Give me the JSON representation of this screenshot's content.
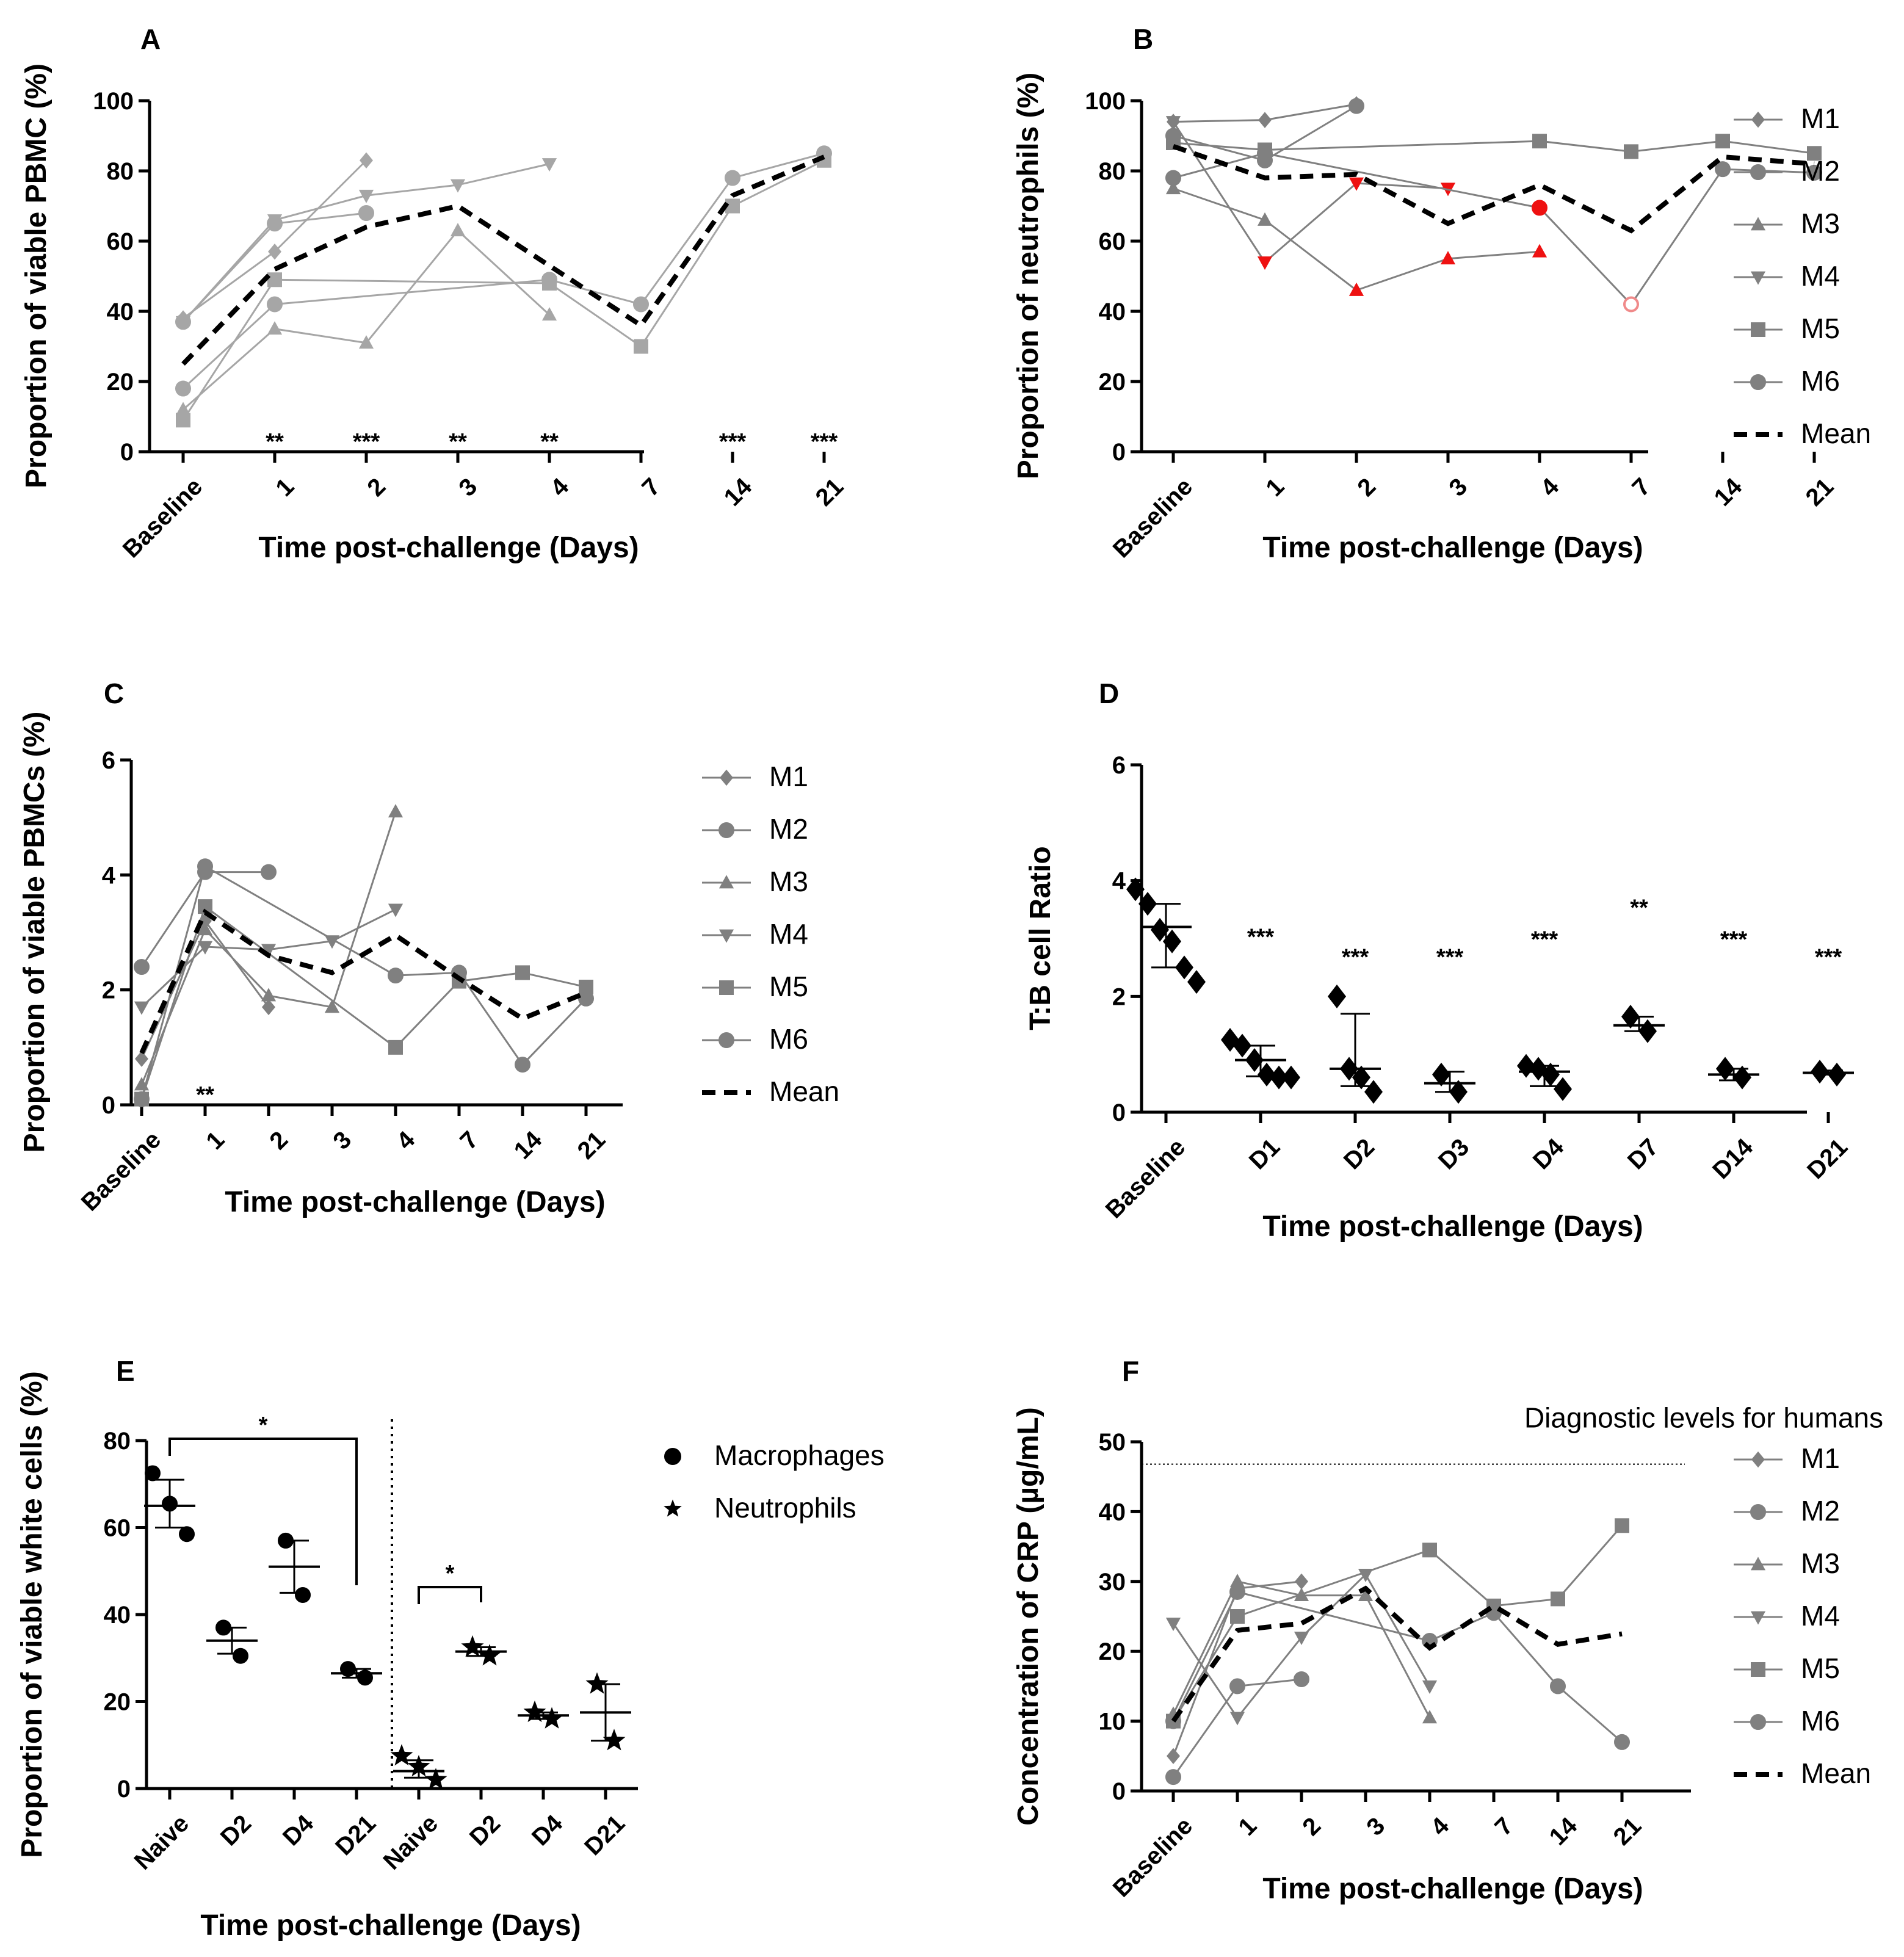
{
  "colors": {
    "series": "#808080",
    "light": "#a6a6a6",
    "mean": "#000000",
    "red": "#ee1111",
    "axis": "#000000"
  },
  "chart_data": [
    {
      "panel": "A",
      "type": "line",
      "ylabel": "Proportion of viable PBMC (%)",
      "xlabel": "Time post-challenge (Days)",
      "categories": [
        "Baseline",
        "1",
        "2",
        "3",
        "4",
        "7",
        "14",
        "21"
      ],
      "ylim": [
        0,
        100
      ],
      "yticks": [
        "0",
        "20",
        "40",
        "60",
        "80",
        "100"
      ],
      "significance": [
        "",
        "**",
        "***",
        "**",
        "**",
        "",
        "***",
        "***"
      ],
      "series": [
        {
          "name": "M1",
          "marker": "diamond",
          "values": [
            38,
            57,
            83,
            null,
            null,
            null,
            null,
            null
          ]
        },
        {
          "name": "M2",
          "marker": "circle",
          "values": [
            37,
            65,
            68,
            null,
            null,
            null,
            null,
            null
          ]
        },
        {
          "name": "M3",
          "marker": "triangle-up",
          "values": [
            12,
            35,
            31,
            63,
            39,
            null,
            null,
            null
          ]
        },
        {
          "name": "M4",
          "marker": "triangle-down",
          "values": [
            37,
            66,
            73,
            76,
            82,
            null,
            null,
            null
          ]
        },
        {
          "name": "M5",
          "marker": "square",
          "values": [
            9,
            49,
            null,
            null,
            48,
            30,
            70,
            83
          ]
        },
        {
          "name": "M6",
          "marker": "circle",
          "values": [
            18,
            42,
            null,
            null,
            49,
            42,
            78,
            85
          ]
        },
        {
          "name": "Mean",
          "marker": "none",
          "values": [
            25,
            52,
            64,
            70,
            53,
            36,
            73,
            84
          ]
        }
      ]
    },
    {
      "panel": "B",
      "type": "line",
      "ylabel": "Proportion of neutrophils (%)",
      "xlabel": "Time post-challenge (Days)",
      "categories": [
        "Baseline",
        "1",
        "2",
        "3",
        "4",
        "7",
        "14",
        "21"
      ],
      "ylim": [
        0,
        100
      ],
      "yticks": [
        "0",
        "20",
        "40",
        "60",
        "80",
        "100"
      ],
      "legend": [
        "M1",
        "M2",
        "M3",
        "M4",
        "M5",
        "M6",
        "Mean"
      ],
      "series": [
        {
          "name": "M1",
          "marker": "diamond",
          "values": [
            94,
            94.5,
            99,
            null,
            null,
            null,
            null,
            null
          ]
        },
        {
          "name": "M2",
          "marker": "circle",
          "values": [
            90,
            83,
            98.5,
            null,
            null,
            null,
            null,
            null
          ]
        },
        {
          "name": "M3",
          "marker": "triangle-up",
          "values": [
            75,
            66,
            46,
            55,
            57,
            null,
            null,
            null
          ],
          "red_from": 2
        },
        {
          "name": "M4",
          "marker": "triangle-down",
          "values": [
            94,
            54,
            76.5,
            75,
            null,
            null,
            null,
            null
          ],
          "red_from": 1
        },
        {
          "name": "M5",
          "marker": "square",
          "values": [
            88,
            86,
            null,
            null,
            88.5,
            85.5,
            88.5,
            85
          ]
        },
        {
          "name": "M6",
          "marker": "circle",
          "values": [
            78,
            85,
            null,
            null,
            69.5,
            42,
            80.5,
            79.5
          ],
          "red_points": [
            4
          ],
          "open_points": [
            5
          ]
        },
        {
          "name": "Mean",
          "marker": "none",
          "values": [
            87,
            78,
            79,
            65,
            76,
            63,
            84,
            82
          ]
        }
      ]
    },
    {
      "panel": "C",
      "type": "line",
      "ylabel": "Proportion of viable PBMCs (%)",
      "xlabel": "Time post-challenge (Days)",
      "categories": [
        "Baseline",
        "1",
        "2",
        "3",
        "4",
        "7",
        "14",
        "21"
      ],
      "ylim": [
        0,
        6
      ],
      "yticks": [
        "0",
        "2",
        "4",
        "6"
      ],
      "significance": [
        "",
        "**",
        "",
        "",
        "",
        "",
        "",
        ""
      ],
      "legend": [
        "M1",
        "M2",
        "M3",
        "M4",
        "M5",
        "M6",
        "Mean"
      ],
      "series": [
        {
          "name": "M1",
          "marker": "diamond",
          "values": [
            0.8,
            3.2,
            1.7,
            null,
            null,
            null,
            null,
            null
          ]
        },
        {
          "name": "M2",
          "marker": "circle",
          "values": [
            2.4,
            4.05,
            4.05,
            null,
            null,
            null,
            null,
            null
          ]
        },
        {
          "name": "M3",
          "marker": "triangle-up",
          "values": [
            0.35,
            3.05,
            1.9,
            1.7,
            5.1,
            null,
            null,
            null
          ]
        },
        {
          "name": "M4",
          "marker": "triangle-down",
          "values": [
            1.7,
            2.75,
            2.7,
            2.85,
            3.4,
            null,
            null,
            null
          ]
        },
        {
          "name": "M5",
          "marker": "square",
          "values": [
            0.1,
            3.45,
            null,
            null,
            1.0,
            2.15,
            2.3,
            2.05
          ]
        },
        {
          "name": "M6",
          "marker": "circle",
          "values": [
            0.1,
            4.15,
            null,
            null,
            2.25,
            2.3,
            0.7,
            1.85
          ]
        },
        {
          "name": "Mean",
          "marker": "none",
          "values": [
            0.9,
            3.35,
            2.6,
            2.3,
            2.95,
            2.2,
            1.5,
            1.95
          ]
        }
      ]
    },
    {
      "panel": "D",
      "type": "scatter",
      "ylabel": "T:B cell Ratio",
      "xlabel": "Time post-challenge (Days)",
      "categories": [
        "Baseline",
        "D1",
        "D2",
        "D3",
        "D4",
        "D7",
        "D14",
        "D21"
      ],
      "ylim": [
        0,
        6
      ],
      "yticks": [
        "0",
        "2",
        "4",
        "6"
      ],
      "significance": [
        "",
        "***",
        "***",
        "***",
        "***",
        "**",
        "***",
        "***"
      ],
      "groups": [
        {
          "points": [
            3.85,
            3.6,
            3.15,
            2.95,
            2.5,
            2.25
          ],
          "center": 3.2,
          "upper": 3.6,
          "lower": 2.5
        },
        {
          "points": [
            1.25,
            1.15,
            0.9,
            0.65,
            0.6,
            0.6
          ],
          "center": 0.9,
          "upper": 1.15,
          "lower": 0.62
        },
        {
          "points": [
            2.0,
            0.75,
            0.6,
            0.35
          ],
          "center": 0.75,
          "upper": 1.7,
          "lower": 0.45
        },
        {
          "points": [
            0.65,
            0.35
          ],
          "center": 0.5,
          "upper": 0.7,
          "lower": 0.35
        },
        {
          "points": [
            0.8,
            0.75,
            0.65,
            0.4
          ],
          "center": 0.7,
          "upper": 0.8,
          "lower": 0.45
        },
        {
          "points": [
            1.65,
            1.4
          ],
          "center": 1.5,
          "upper": 1.65,
          "lower": 1.4
        },
        {
          "points": [
            0.75,
            0.6
          ],
          "center": 0.65,
          "upper": 0.75,
          "lower": 0.55
        },
        {
          "points": [
            0.7,
            0.65
          ],
          "center": 0.68,
          "upper": 0.72,
          "lower": 0.65
        }
      ]
    },
    {
      "panel": "E",
      "type": "scatter",
      "ylabel": "Proportion of viable white cells (%)",
      "xlabel": "Time post-challenge (Days)",
      "categories": [
        "Naive",
        "D2",
        "D4",
        "D21",
        "Naive",
        "D2",
        "D4",
        "D21"
      ],
      "ylim": [
        0,
        80
      ],
      "yticks": [
        "0",
        "20",
        "40",
        "60",
        "80"
      ],
      "legend": [
        "Macrophages",
        "Neutrophils"
      ],
      "brackets": [
        {
          "from": 0,
          "to": 3,
          "label": "*"
        },
        {
          "from": 4,
          "to": 5,
          "label": "*"
        }
      ],
      "groups": [
        {
          "cell": "Macrophages",
          "points": [
            72.5,
            65.5,
            58.5
          ],
          "center": 65,
          "upper": 71,
          "lower": 60
        },
        {
          "cell": "Macrophages",
          "points": [
            37,
            30.5
          ],
          "center": 34,
          "upper": 37,
          "lower": 31
        },
        {
          "cell": "Macrophages",
          "points": [
            57,
            44.5
          ],
          "center": 51,
          "upper": 57,
          "lower": 45
        },
        {
          "cell": "Macrophages",
          "points": [
            27.5,
            25.5
          ],
          "center": 26.5,
          "upper": 27.5,
          "lower": 25.5
        },
        {
          "cell": "Neutrophils",
          "points": [
            7.5,
            5,
            2
          ],
          "center": 4,
          "upper": 6.5,
          "lower": 2.5
        },
        {
          "cell": "Neutrophils",
          "points": [
            32.5,
            30.5
          ],
          "center": 31.5,
          "upper": 32.5,
          "lower": 30.5
        },
        {
          "cell": "Neutrophils",
          "points": [
            17.5,
            16
          ],
          "center": 16.8,
          "upper": 17.5,
          "lower": 16
        },
        {
          "cell": "Neutrophils",
          "points": [
            24,
            11
          ],
          "center": 17.5,
          "upper": 24,
          "lower": 11
        }
      ]
    },
    {
      "panel": "F",
      "type": "line",
      "ylabel": "Concentration of CRP (µg/mL)",
      "xlabel": "Time post-challenge (Days)",
      "categories": [
        "Baseline",
        "1",
        "2",
        "3",
        "4",
        "7",
        "14",
        "21"
      ],
      "ylim": [
        0,
        50
      ],
      "yticks": [
        "0",
        "10",
        "20",
        "30",
        "40",
        "50"
      ],
      "reference_line": {
        "value": 46.8,
        "label": "Diagnostic levels for humans"
      },
      "legend": [
        "M1",
        "M2",
        "M3",
        "M4",
        "M5",
        "M6",
        "Mean"
      ],
      "series": [
        {
          "name": "M1",
          "marker": "diamond",
          "values": [
            5,
            29,
            30,
            null,
            null,
            null,
            null,
            null
          ]
        },
        {
          "name": "M2",
          "marker": "circle",
          "values": [
            2,
            15,
            16,
            null,
            null,
            null,
            null,
            null
          ]
        },
        {
          "name": "M3",
          "marker": "triangle-up",
          "values": [
            11,
            30,
            28,
            28,
            10.5,
            null,
            null,
            null
          ]
        },
        {
          "name": "M4",
          "marker": "triangle-down",
          "values": [
            24,
            10.5,
            22,
            31,
            15,
            null,
            null,
            null
          ]
        },
        {
          "name": "M5",
          "marker": "square",
          "values": [
            10,
            25,
            null,
            null,
            34.5,
            26.5,
            27.5,
            38
          ]
        },
        {
          "name": "M6",
          "marker": "circle",
          "values": [
            10,
            28.5,
            null,
            null,
            21.5,
            25.5,
            15,
            7
          ]
        },
        {
          "name": "Mean",
          "marker": "none",
          "values": [
            10,
            23,
            24,
            29,
            20.5,
            26.5,
            21,
            22.5
          ]
        }
      ]
    }
  ]
}
